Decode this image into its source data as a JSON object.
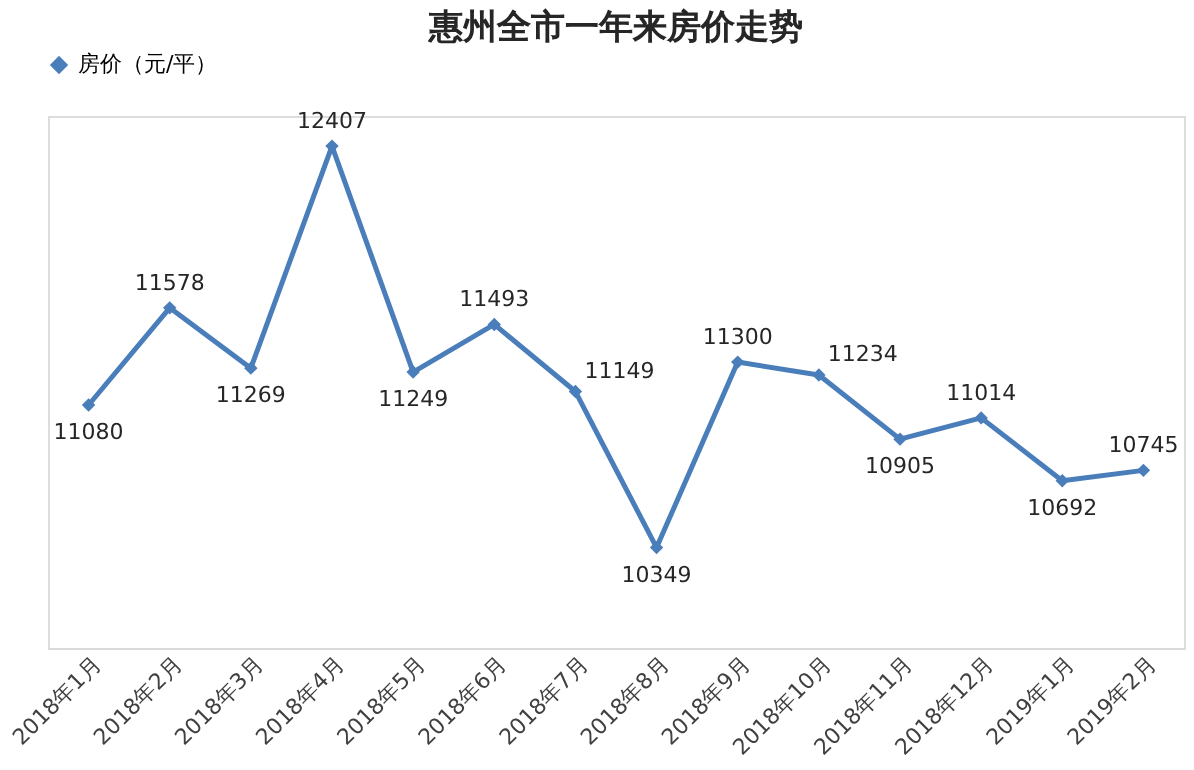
{
  "chart_data": {
    "type": "line",
    "title": "惠州全市一年来房价走势",
    "categories": [
      "2018年1月",
      "2018年2月",
      "2018年3月",
      "2018年4月",
      "2018年5月",
      "2018年6月",
      "2018年7月",
      "2018年8月",
      "2018年9月",
      "2018年10月",
      "2018年11月",
      "2018年12月",
      "2019年1月",
      "2019年2月"
    ],
    "series": [
      {
        "name": "房价（元/平）",
        "color": "#4a7ebb",
        "values": [
          11080,
          11578,
          11269,
          12407,
          11249,
          11493,
          11149,
          10349,
          11300,
          11234,
          10905,
          11014,
          10692,
          10745
        ]
      }
    ],
    "data_labels": true,
    "marker": "diamond",
    "legend": "top",
    "grid": false
  }
}
